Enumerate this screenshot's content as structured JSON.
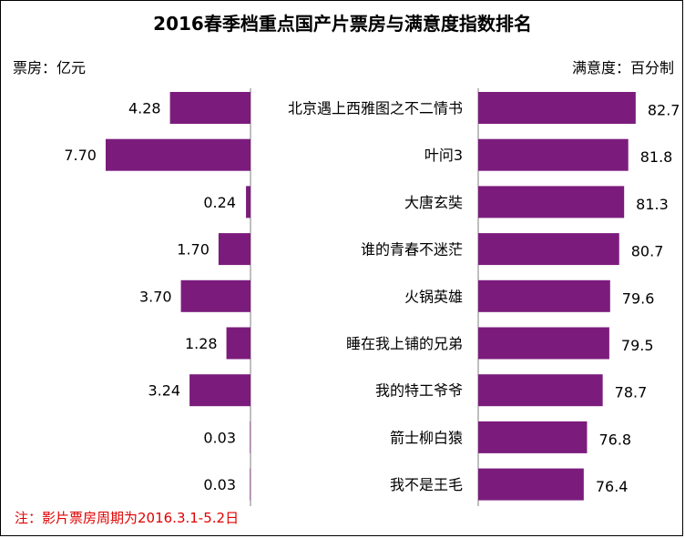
{
  "chart_data": {
    "type": "bar",
    "title": "2016春季档重点国产片票房与满意度指数排名",
    "left_unit": "票房：亿元",
    "right_unit": "满意度：百分制",
    "note": "注：影片票房周期为2016.3.1-5.2日",
    "categories": [
      "北京遇上西雅图之不二情书",
      "叶问3",
      "大唐玄奘",
      "谁的青春不迷茫",
      "火锅英雄",
      "睡在我上铺的兄弟",
      "我的特工爷爷",
      "箭士柳白猿",
      "我不是王毛"
    ],
    "series": [
      {
        "key": "box_office",
        "values": [
          4.28,
          7.7,
          0.24,
          1.7,
          3.7,
          1.28,
          3.24,
          0.03,
          0.03
        ],
        "labels": [
          "4.28",
          "7.70",
          "0.24",
          "1.70",
          "3.70",
          "1.28",
          "3.24",
          "0.03",
          "0.03"
        ]
      },
      {
        "key": "satisfaction",
        "values": [
          82.7,
          81.8,
          81.3,
          80.7,
          79.6,
          79.5,
          78.7,
          76.8,
          76.4
        ],
        "labels": [
          "82.7",
          "81.8",
          "81.3",
          "80.7",
          "79.6",
          "79.5",
          "78.7",
          "76.8",
          "76.4"
        ]
      }
    ],
    "colors": {
      "bar": "#7b1c7d",
      "note": "#e00000"
    }
  }
}
